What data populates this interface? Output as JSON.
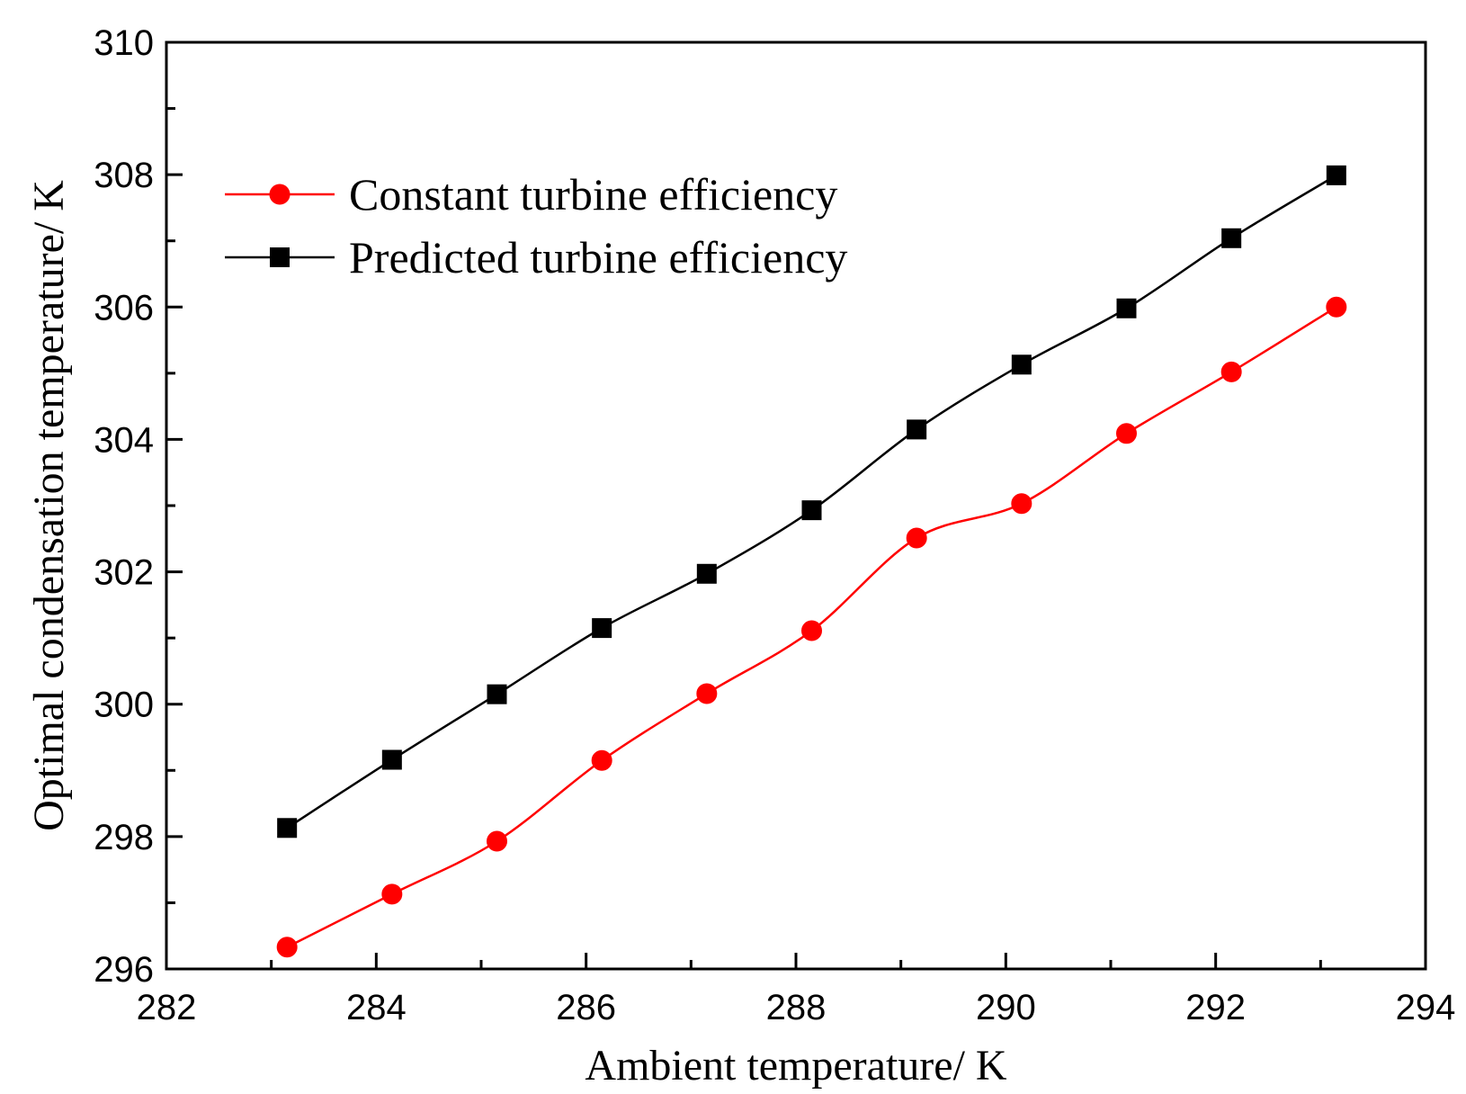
{
  "chart_data": {
    "type": "line",
    "title": "",
    "xlabel": "Ambient temperature/ K",
    "ylabel": "Optimal condensation temperature/ K",
    "xlim": [
      282,
      294
    ],
    "ylim": [
      296,
      310
    ],
    "xticks": [
      282,
      284,
      286,
      288,
      290,
      292,
      294
    ],
    "yticks": [
      296,
      298,
      300,
      302,
      304,
      306,
      308,
      310
    ],
    "x": [
      283.15,
      284.15,
      285.15,
      286.15,
      287.15,
      288.15,
      289.15,
      290.15,
      291.15,
      292.15,
      293.15
    ],
    "legend_position": "top-left",
    "grid": false,
    "series": [
      {
        "name": "Constant turbine efficiency",
        "color": "#ff0000",
        "marker": "circle",
        "values": [
          296.33,
          297.13,
          297.93,
          299.15,
          300.16,
          301.11,
          302.51,
          303.03,
          304.09,
          305.02,
          306.0
        ]
      },
      {
        "name": "Predicted turbine efficiency",
        "color": "#000000",
        "marker": "square",
        "values": [
          298.13,
          299.16,
          300.15,
          301.15,
          301.97,
          302.93,
          304.15,
          305.13,
          305.98,
          307.04,
          307.99
        ]
      }
    ]
  }
}
